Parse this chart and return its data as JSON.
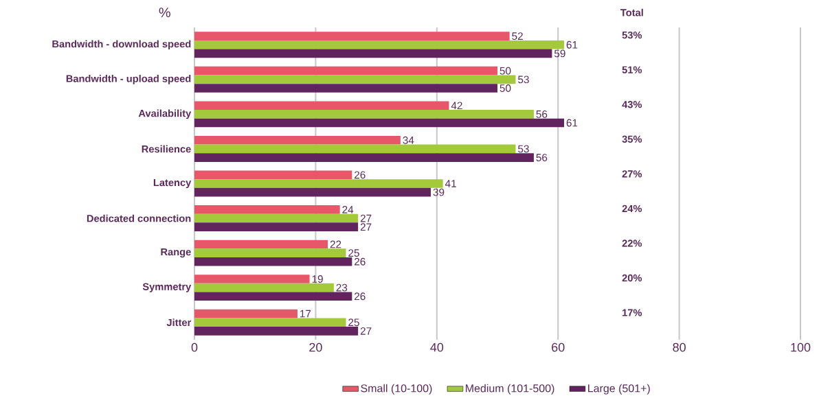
{
  "chart_data": {
    "type": "bar",
    "orientation": "horizontal",
    "xlabel": "%",
    "categories": [
      "Bandwidth - download speed",
      "Bandwidth - upload speed",
      "Availability",
      "Resilience",
      "Latency",
      "Dedicated connection",
      "Range",
      "Symmetry",
      "Jitter"
    ],
    "series": [
      {
        "name": "Small (10-100)",
        "color": "#e8566a",
        "values": [
          52,
          50,
          42,
          34,
          26,
          24,
          22,
          19,
          17
        ]
      },
      {
        "name": "Medium (101-500)",
        "color": "#a4c93a",
        "values": [
          61,
          53,
          56,
          53,
          41,
          27,
          25,
          23,
          25
        ]
      },
      {
        "name": "Large (501+)",
        "color": "#62245e",
        "values": [
          59,
          50,
          61,
          56,
          39,
          27,
          26,
          26,
          27
        ]
      }
    ],
    "xlim": [
      0,
      100
    ],
    "xticks": [
      0,
      20,
      40,
      60,
      80,
      100
    ],
    "grid": "x",
    "legend": "bottom",
    "data_labels": true,
    "annotations": [
      "Total",
      "53%",
      "51%",
      "43%",
      "35%",
      "27%",
      "24%",
      "22%",
      "20%",
      "17%"
    ]
  }
}
